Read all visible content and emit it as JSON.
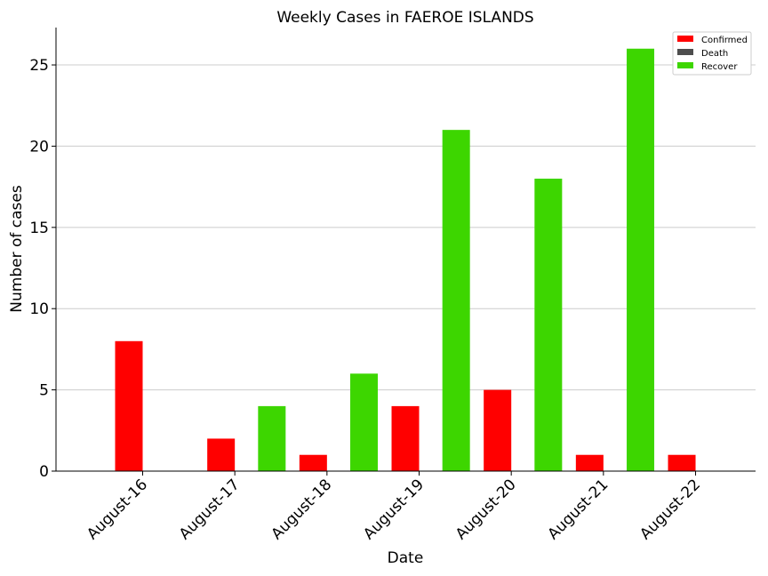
{
  "chart_data": {
    "type": "bar",
    "title": "Weekly Cases in FAEROE ISLANDS",
    "xlabel": "Date",
    "ylabel": "Number of cases",
    "categories": [
      "August-16",
      "August-17",
      "August-18",
      "August-19",
      "August-20",
      "August-21",
      "August-22"
    ],
    "series": [
      {
        "name": "Confirmed",
        "color": "#ff0000",
        "values": [
          8,
          2,
          1,
          4,
          5,
          1,
          1
        ]
      },
      {
        "name": "Death",
        "color": "#4d4d4d",
        "values": [
          0,
          0,
          0,
          0,
          0,
          0,
          0
        ]
      },
      {
        "name": "Recover",
        "color": "#3dd600",
        "values": [
          0,
          0,
          4,
          6,
          21,
          18,
          26
        ]
      }
    ],
    "ylim": [
      0,
      27.3
    ],
    "yticks": [
      0,
      5,
      10,
      15,
      20,
      25
    ],
    "grid": "horizontal",
    "legend_position": "top-right"
  }
}
